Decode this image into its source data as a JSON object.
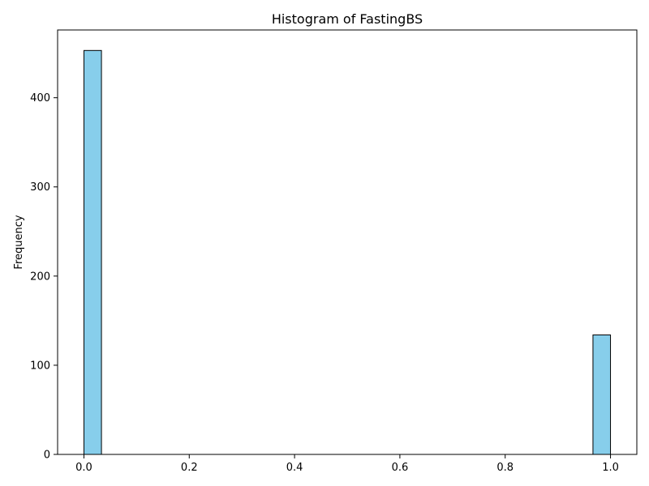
{
  "chart_data": {
    "type": "bar",
    "title": "Histogram of FastingBS",
    "xlabel": "",
    "ylabel": "Frequency",
    "xlim": [
      -0.05,
      1.05
    ],
    "ylim": [
      0,
      476
    ],
    "xticks": [
      0.0,
      0.2,
      0.4,
      0.6,
      0.8,
      1.0
    ],
    "xtick_labels": [
      "0.0",
      "0.2",
      "0.4",
      "0.6",
      "0.8",
      "1.0"
    ],
    "yticks": [
      0,
      100,
      200,
      300,
      400
    ],
    "ytick_labels": [
      "0",
      "100",
      "200",
      "300",
      "400"
    ],
    "bins": [
      {
        "x0": 0.0,
        "x1": 0.0333,
        "count": 453
      },
      {
        "x0": 0.9667,
        "x1": 1.0,
        "count": 134
      }
    ],
    "bar_color": "#87CEEB",
    "edge_color": "#000000",
    "grid": false
  }
}
